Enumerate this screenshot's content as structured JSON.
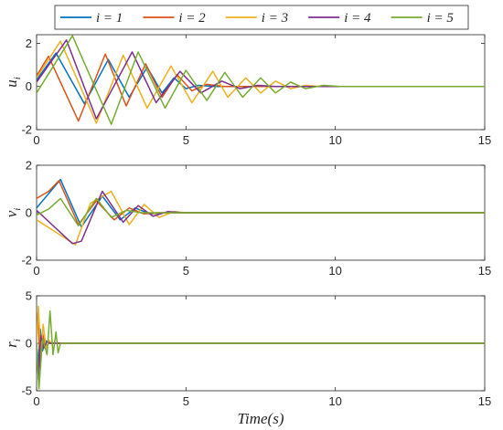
{
  "chart_data": [
    {
      "type": "line",
      "ylabel": "u_i",
      "xlim": [
        0,
        15
      ],
      "ylim": [
        -2,
        2.4
      ],
      "yticks": [
        -2,
        0,
        2
      ],
      "xticks": [
        0,
        5,
        10,
        15
      ],
      "series": [
        {
          "name": "i = 1",
          "color": "#0072BD",
          "points": [
            [
              0,
              0.3
            ],
            [
              0.65,
              1.55
            ],
            [
              1.6,
              -0.8
            ],
            [
              2.4,
              1.25
            ],
            [
              3.1,
              -0.5
            ],
            [
              3.7,
              0.9
            ],
            [
              4.2,
              -0.3
            ],
            [
              4.6,
              0.4
            ],
            [
              5.0,
              -0.1
            ],
            [
              5.4,
              0.05
            ],
            [
              6,
              0
            ],
            [
              15,
              0
            ]
          ]
        },
        {
          "name": "i = 2",
          "color": "#D95319",
          "points": [
            [
              0,
              0.5
            ],
            [
              0.4,
              1.4
            ],
            [
              1.4,
              -1.6
            ],
            [
              2.3,
              1.5
            ],
            [
              3.0,
              -0.9
            ],
            [
              3.65,
              1.05
            ],
            [
              4.2,
              -0.5
            ],
            [
              4.7,
              0.55
            ],
            [
              5.2,
              -0.2
            ],
            [
              5.7,
              0.1
            ],
            [
              6.3,
              0
            ],
            [
              15,
              0
            ]
          ]
        },
        {
          "name": "i = 3",
          "color": "#EDB120",
          "points": [
            [
              0,
              0.4
            ],
            [
              0.8,
              2.1
            ],
            [
              2.0,
              -1.7
            ],
            [
              2.9,
              1.45
            ],
            [
              3.7,
              -1.0
            ],
            [
              4.5,
              0.95
            ],
            [
              5.2,
              -0.75
            ],
            [
              5.9,
              0.7
            ],
            [
              6.4,
              -0.5
            ],
            [
              7.0,
              0.4
            ],
            [
              7.5,
              -0.3
            ],
            [
              8.0,
              0.25
            ],
            [
              8.5,
              -0.1
            ],
            [
              9.0,
              0.05
            ],
            [
              9.5,
              0
            ],
            [
              15,
              0
            ]
          ]
        },
        {
          "name": "i = 4",
          "color": "#7E2F8E",
          "points": [
            [
              0,
              0.2
            ],
            [
              1.0,
              2.15
            ],
            [
              2.0,
              -1.5
            ],
            [
              3.2,
              1.6
            ],
            [
              4.0,
              -0.75
            ],
            [
              4.8,
              0.7
            ],
            [
              5.5,
              -0.3
            ],
            [
              6.2,
              0.25
            ],
            [
              6.8,
              -0.1
            ],
            [
              7.4,
              0.05
            ],
            [
              8,
              0
            ],
            [
              15,
              0
            ]
          ]
        },
        {
          "name": "i = 5",
          "color": "#77AC30",
          "points": [
            [
              0,
              -0.3
            ],
            [
              1.2,
              2.35
            ],
            [
              2.5,
              -1.75
            ],
            [
              3.4,
              1.6
            ],
            [
              4.3,
              -1.0
            ],
            [
              5.0,
              0.75
            ],
            [
              5.7,
              -0.65
            ],
            [
              6.3,
              0.65
            ],
            [
              6.9,
              -0.5
            ],
            [
              7.5,
              0.4
            ],
            [
              8.0,
              -0.3
            ],
            [
              8.5,
              0.2
            ],
            [
              9.0,
              -0.1
            ],
            [
              9.6,
              0.05
            ],
            [
              10.2,
              0
            ],
            [
              15,
              0
            ]
          ]
        }
      ]
    },
    {
      "type": "line",
      "ylabel": "v_i",
      "xlim": [
        0,
        15
      ],
      "ylim": [
        -2,
        2
      ],
      "yticks": [
        -2,
        0,
        2
      ],
      "xticks": [
        0,
        5,
        10,
        15
      ],
      "series": [
        {
          "name": "i = 1",
          "color": "#0072BD",
          "points": [
            [
              0,
              0.2
            ],
            [
              0.8,
              1.4
            ],
            [
              1.5,
              -0.6
            ],
            [
              2.2,
              0.7
            ],
            [
              2.8,
              -0.3
            ],
            [
              3.3,
              0.2
            ],
            [
              3.8,
              -0.05
            ],
            [
              4.3,
              0
            ],
            [
              15,
              0
            ]
          ]
        },
        {
          "name": "i = 2",
          "color": "#D95319",
          "points": [
            [
              0,
              0.6
            ],
            [
              0.4,
              0.9
            ],
            [
              0.75,
              1.35
            ],
            [
              1.4,
              -0.5
            ],
            [
              2.0,
              0.5
            ],
            [
              2.6,
              -0.3
            ],
            [
              3.1,
              0.2
            ],
            [
              3.6,
              -0.05
            ],
            [
              4.1,
              0
            ],
            [
              15,
              0
            ]
          ]
        },
        {
          "name": "i = 3",
          "color": "#EDB120",
          "points": [
            [
              0,
              -0.3
            ],
            [
              1.3,
              -1.35
            ],
            [
              1.8,
              0.4
            ],
            [
              2.5,
              0.9
            ],
            [
              3.1,
              -0.5
            ],
            [
              3.6,
              0.35
            ],
            [
              4.1,
              -0.2
            ],
            [
              4.6,
              0.05
            ],
            [
              5.0,
              0
            ],
            [
              15,
              0
            ]
          ]
        },
        {
          "name": "i = 4",
          "color": "#7E2F8E",
          "points": [
            [
              0,
              0.1
            ],
            [
              1.2,
              -1.3
            ],
            [
              1.5,
              -1.2
            ],
            [
              2.2,
              0.9
            ],
            [
              2.9,
              -0.4
            ],
            [
              3.4,
              0.3
            ],
            [
              3.9,
              -0.15
            ],
            [
              4.4,
              0.05
            ],
            [
              4.9,
              0
            ],
            [
              15,
              0
            ]
          ]
        },
        {
          "name": "i = 5",
          "color": "#77AC30",
          "points": [
            [
              0,
              -0.1
            ],
            [
              0.4,
              0.15
            ],
            [
              0.8,
              0.6
            ],
            [
              1.4,
              -0.55
            ],
            [
              2.0,
              0.6
            ],
            [
              2.5,
              -0.2
            ],
            [
              3.0,
              0.1
            ],
            [
              3.5,
              0
            ],
            [
              15,
              0
            ]
          ]
        }
      ]
    },
    {
      "type": "line",
      "ylabel": "r_i",
      "xlim": [
        0,
        15
      ],
      "ylim": [
        -5,
        5
      ],
      "yticks": [
        -5,
        0,
        5
      ],
      "xticks": [
        0,
        5,
        10,
        15
      ],
      "xlabel": "Time(s)",
      "series": [
        {
          "name": "i = 1",
          "color": "#0072BD",
          "points": [
            [
              0,
              0
            ],
            [
              0.05,
              -2.5
            ],
            [
              0.12,
              1.5
            ],
            [
              0.2,
              -0.8
            ],
            [
              0.3,
              0.3
            ],
            [
              0.4,
              0
            ],
            [
              15,
              0
            ]
          ]
        },
        {
          "name": "i = 2",
          "color": "#D95319",
          "points": [
            [
              0,
              0
            ],
            [
              0.05,
              3.2
            ],
            [
              0.12,
              -2.4
            ],
            [
              0.2,
              1.0
            ],
            [
              0.3,
              -0.4
            ],
            [
              0.4,
              0
            ],
            [
              15,
              0
            ]
          ]
        },
        {
          "name": "i = 3",
          "color": "#EDB120",
          "points": [
            [
              0,
              0
            ],
            [
              0.06,
              3.9
            ],
            [
              0.14,
              -1.2
            ],
            [
              0.22,
              2.0
            ],
            [
              0.32,
              -0.6
            ],
            [
              0.42,
              0.3
            ],
            [
              0.5,
              0
            ],
            [
              15,
              0
            ]
          ]
        },
        {
          "name": "i = 4",
          "color": "#7E2F8E",
          "points": [
            [
              0,
              0
            ],
            [
              0.06,
              -3.8
            ],
            [
              0.14,
              0.8
            ],
            [
              0.24,
              -0.5
            ],
            [
              0.35,
              0.2
            ],
            [
              0.45,
              0
            ],
            [
              15,
              0
            ]
          ]
        },
        {
          "name": "i = 5",
          "color": "#77AC30",
          "points": [
            [
              0,
              0
            ],
            [
              0.08,
              -4.8
            ],
            [
              0.2,
              0.5
            ],
            [
              0.35,
              -1.2
            ],
            [
              0.45,
              3.4
            ],
            [
              0.55,
              -1.2
            ],
            [
              0.65,
              1.2
            ],
            [
              0.72,
              -1.0
            ],
            [
              0.8,
              0
            ],
            [
              15,
              0
            ]
          ]
        }
      ]
    }
  ],
  "legend": {
    "entries": [
      "i = 1",
      "i = 2",
      "i = 3",
      "i = 4",
      "i = 5"
    ],
    "placement": "top-center"
  }
}
